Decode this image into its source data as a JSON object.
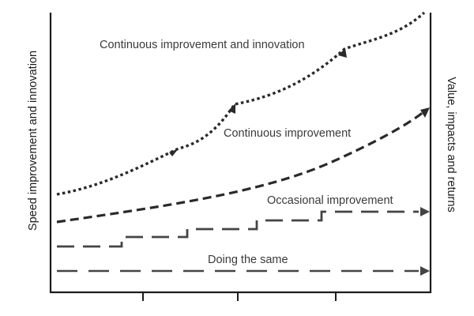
{
  "diagram": {
    "left_axis_label": "Speed improvement and innovation",
    "right_axis_label": "Value, impacts and returns",
    "lines": [
      {
        "id": "continuous-improvement-and-innovation",
        "label": "Continuous improvement and innovation",
        "style": "dotted"
      },
      {
        "id": "continuous-improvement",
        "label": "Continuous improvement",
        "style": "dashed"
      },
      {
        "id": "occasional-improvement",
        "label": "Occasional improvement",
        "style": "long-dashed-steps"
      },
      {
        "id": "doing-the-same",
        "label": "Doing the same",
        "style": "long-dashed-flat"
      }
    ],
    "colors": {
      "axis": "#1c1c1c",
      "curves": "#2a2a2a",
      "steps": "#444444",
      "text": "#3a3a3a"
    }
  }
}
